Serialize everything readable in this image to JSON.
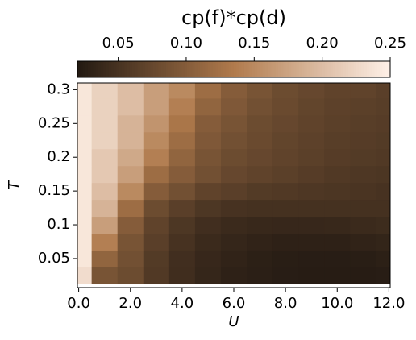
{
  "chart_data": {
    "type": "heatmap",
    "title": "cp(f)*cp(d)",
    "x_label": "U",
    "y_label": "T",
    "x": [
      0,
      1,
      2,
      3,
      4,
      5,
      6,
      7,
      8,
      9,
      10,
      11,
      12
    ],
    "y": [
      0.025,
      0.05,
      0.075,
      0.1,
      0.125,
      0.15,
      0.175,
      0.2,
      0.225,
      0.25,
      0.275,
      0.3
    ],
    "z": [
      [
        0.23,
        0.09,
        0.08,
        0.058,
        0.044,
        0.035,
        0.03,
        0.027,
        0.025,
        0.024,
        0.024,
        0.024,
        0.025
      ],
      [
        0.24,
        0.11,
        0.085,
        0.06,
        0.045,
        0.037,
        0.032,
        0.028,
        0.026,
        0.025,
        0.025,
        0.026,
        0.028
      ],
      [
        0.24,
        0.14,
        0.09,
        0.065,
        0.05,
        0.04,
        0.035,
        0.032,
        0.03,
        0.03,
        0.03,
        0.032,
        0.034
      ],
      [
        0.24,
        0.17,
        0.1,
        0.07,
        0.055,
        0.045,
        0.04,
        0.038,
        0.037,
        0.037,
        0.038,
        0.04,
        0.042
      ],
      [
        0.24,
        0.19,
        0.12,
        0.08,
        0.065,
        0.055,
        0.05,
        0.048,
        0.048,
        0.048,
        0.048,
        0.048,
        0.048
      ],
      [
        0.24,
        0.2,
        0.15,
        0.1,
        0.085,
        0.07,
        0.065,
        0.06,
        0.058,
        0.056,
        0.054,
        0.052,
        0.05
      ],
      [
        0.24,
        0.21,
        0.17,
        0.12,
        0.1,
        0.085,
        0.075,
        0.07,
        0.066,
        0.062,
        0.058,
        0.056,
        0.054
      ],
      [
        0.24,
        0.21,
        0.18,
        0.14,
        0.11,
        0.09,
        0.08,
        0.075,
        0.07,
        0.066,
        0.062,
        0.06,
        0.058
      ],
      [
        0.24,
        0.22,
        0.19,
        0.15,
        0.12,
        0.095,
        0.085,
        0.078,
        0.072,
        0.068,
        0.064,
        0.062,
        0.06
      ],
      [
        0.24,
        0.22,
        0.19,
        0.16,
        0.13,
        0.1,
        0.09,
        0.08,
        0.075,
        0.07,
        0.066,
        0.064,
        0.062
      ],
      [
        0.24,
        0.22,
        0.2,
        0.17,
        0.14,
        0.11,
        0.095,
        0.085,
        0.078,
        0.072,
        0.068,
        0.066,
        0.064
      ],
      [
        0.24,
        0.22,
        0.2,
        0.17,
        0.15,
        0.12,
        0.1,
        0.09,
        0.08,
        0.075,
        0.07,
        0.07,
        0.065
      ]
    ],
    "xlim": [
      -0.05,
      12.05
    ],
    "ylim": [
      0.007,
      0.31
    ],
    "xticks": [
      {
        "value": 0,
        "label": "0.0"
      },
      {
        "value": 2,
        "label": "2.0"
      },
      {
        "value": 4,
        "label": "4.0"
      },
      {
        "value": 6,
        "label": "6.0"
      },
      {
        "value": 8,
        "label": "8.0"
      },
      {
        "value": 10,
        "label": "10.0"
      },
      {
        "value": 12,
        "label": "12.0"
      }
    ],
    "yticks": [
      0.05,
      0.1,
      0.15,
      0.2,
      0.25,
      0.3
    ],
    "clim": [
      0.02,
      0.25
    ],
    "cticks": [
      0.05,
      {
        "value": 0.1,
        "label": "0.10"
      },
      0.15,
      {
        "value": 0.2,
        "label": "0.20"
      },
      0.25
    ],
    "colormap": [
      "#221912",
      "#b07a4c",
      "#fff1e8"
    ]
  }
}
